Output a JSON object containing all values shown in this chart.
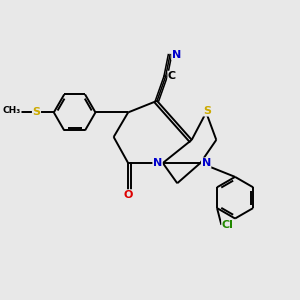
{
  "bg_color": "#e8e8e8",
  "bond_color": "#000000",
  "atom_colors": {
    "N": "#0000cc",
    "S": "#ccaa00",
    "O": "#dd0000",
    "Cl": "#228800",
    "C": "#000000"
  },
  "font_size": 8.0,
  "linewidth": 1.4,
  "figsize": [
    3.0,
    3.0
  ],
  "dpi": 100
}
